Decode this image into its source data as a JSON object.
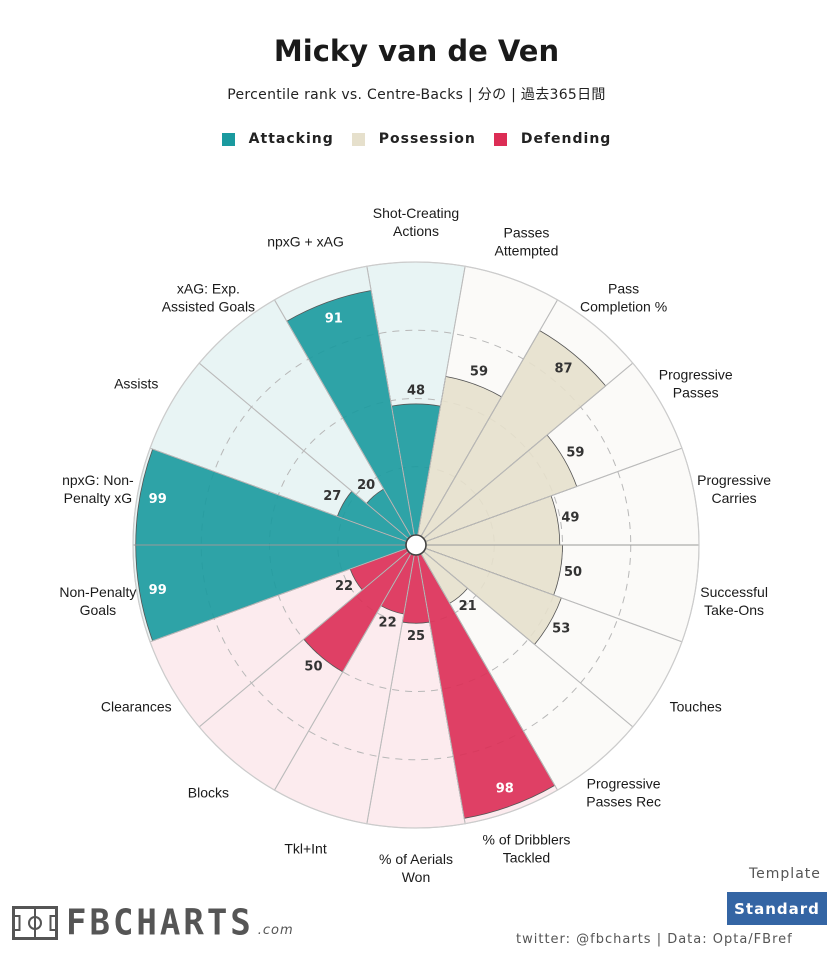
{
  "title": "Micky van de Ven",
  "subtitle": "Percentile rank vs. Centre-Backs | 分の | 過去365日間",
  "legend": [
    {
      "label": "Attacking",
      "color": "#1a9a9f"
    },
    {
      "label": "Possession",
      "color": "#e6e0cc"
    },
    {
      "label": "Defending",
      "color": "#dc2d55"
    }
  ],
  "chart_data": {
    "type": "polar-bar",
    "rmax": 100,
    "rings": [
      25,
      50,
      75
    ],
    "metrics": [
      {
        "label": "Shot-Creating\nActions",
        "value": 48,
        "group": "Attacking"
      },
      {
        "label": "Passes\nAttempted",
        "value": 59,
        "group": "Possession"
      },
      {
        "label": "Pass\nCompletion %",
        "value": 87,
        "group": "Possession"
      },
      {
        "label": "Progressive\nPasses",
        "value": 59,
        "group": "Possession"
      },
      {
        "label": "Progressive\nCarries",
        "value": 49,
        "group": "Possession"
      },
      {
        "label": "Successful\nTake-Ons",
        "value": 50,
        "group": "Possession"
      },
      {
        "label": "Touches",
        "value": 53,
        "group": "Possession"
      },
      {
        "label": "Progressive\nPasses Rec",
        "value": 21,
        "group": "Possession"
      },
      {
        "label": "% of Dribblers\nTackled",
        "value": 98,
        "group": "Defending"
      },
      {
        "label": "% of Aerials\nWon",
        "value": 25,
        "group": "Defending"
      },
      {
        "label": "Tkl+Int",
        "value": 22,
        "group": "Defending"
      },
      {
        "label": "Blocks",
        "value": 50,
        "group": "Defending"
      },
      {
        "label": "Clearances",
        "value": 22,
        "group": "Defending"
      },
      {
        "label": "Non-Penalty\nGoals",
        "value": 99,
        "group": "Attacking"
      },
      {
        "label": "npxG: Non-\nPenalty xG",
        "value": 99,
        "group": "Attacking"
      },
      {
        "label": "Assists",
        "value": 27,
        "group": "Attacking"
      },
      {
        "label": "xAG: Exp.\nAssisted Goals",
        "value": 20,
        "group": "Attacking"
      },
      {
        "label": "npxG + xAG",
        "value": 91,
        "group": "Attacking"
      }
    ]
  },
  "colors": {
    "Attacking": {
      "fill": "#1a9a9f",
      "bg": "#e8f4f4",
      "text": "#ffffff",
      "textLow": "#333333"
    },
    "Possession": {
      "fill": "#e6e0cc",
      "bg": "#fbfaf8",
      "text": "#333333",
      "textLow": "#333333"
    },
    "Defending": {
      "fill": "#dc2d55",
      "bg": "#fcebee",
      "text": "#ffffff",
      "textLow": "#333333"
    }
  },
  "template": {
    "label": "Template",
    "button": "Standard"
  },
  "credits": "twitter: @fbcharts | Data: Opta/FBref",
  "logo": {
    "text": "FBCHARTS",
    "suffix": ".com"
  }
}
